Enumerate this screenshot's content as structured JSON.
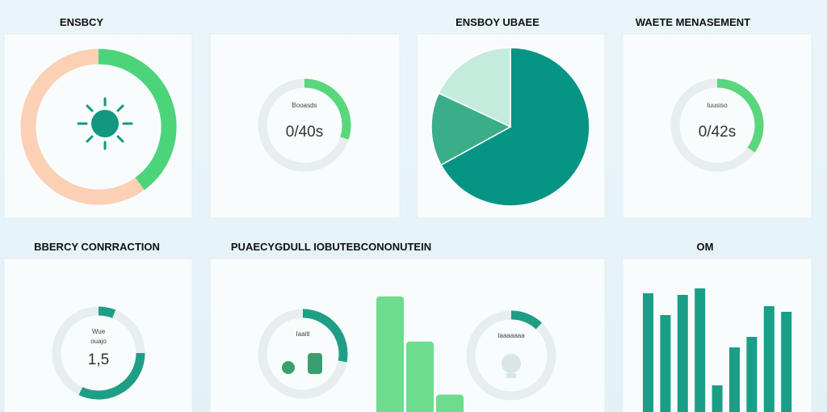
{
  "top_labels": [
    "ENSBCY",
    "ENSBOY UBAEE",
    "WAETE MENASEMENT"
  ],
  "bottom_labels": [
    "BBERCY CONRRACTION",
    "PUAECYGDULL IOBUTEBCONONUTEIN",
    "OM"
  ],
  "donut": {
    "type": "pie",
    "values": [
      40,
      60
    ],
    "colors": [
      "#4cd47a",
      "#fbd0b5"
    ]
  },
  "gauge_a": {
    "type": "gauge",
    "value": 30,
    "label": "Booasds",
    "text": "0/40s",
    "color": "#5ad67d"
  },
  "pie": {
    "type": "pie",
    "values": [
      67,
      15,
      18
    ],
    "colors": [
      "#069484",
      "#3aae88",
      "#c4ebdc"
    ]
  },
  "gauge_b": {
    "type": "gauge",
    "value": 35,
    "label": "Iuusiso",
    "text": "0/42s",
    "color": "#5ad67d"
  },
  "gauge_c": {
    "type": "gauge",
    "arcs": [
      {
        "start": 0,
        "value": 6
      },
      {
        "start": 25,
        "value": 32
      }
    ],
    "label": [
      "Wue",
      "ouajo"
    ],
    "text": "1,5",
    "color": "#1f9e86"
  },
  "gauge_d": {
    "type": "gauge",
    "value": 28,
    "label": "Iaaitl",
    "color": "#1f9e86"
  },
  "gauge_e": {
    "type": "gauge",
    "value": 12,
    "label": "Iaaaaaaa",
    "color": "#1f9e86"
  },
  "bars_a": {
    "type": "bar",
    "values": [
      100,
      61,
      15
    ],
    "color": "#6ddc8e"
  },
  "bars_b": {
    "type": "bar",
    "values": [
      147,
      120,
      145,
      153,
      33,
      80,
      93,
      131,
      124
    ],
    "ylim": [
      0,
      160
    ],
    "color": "#1a9e88"
  }
}
